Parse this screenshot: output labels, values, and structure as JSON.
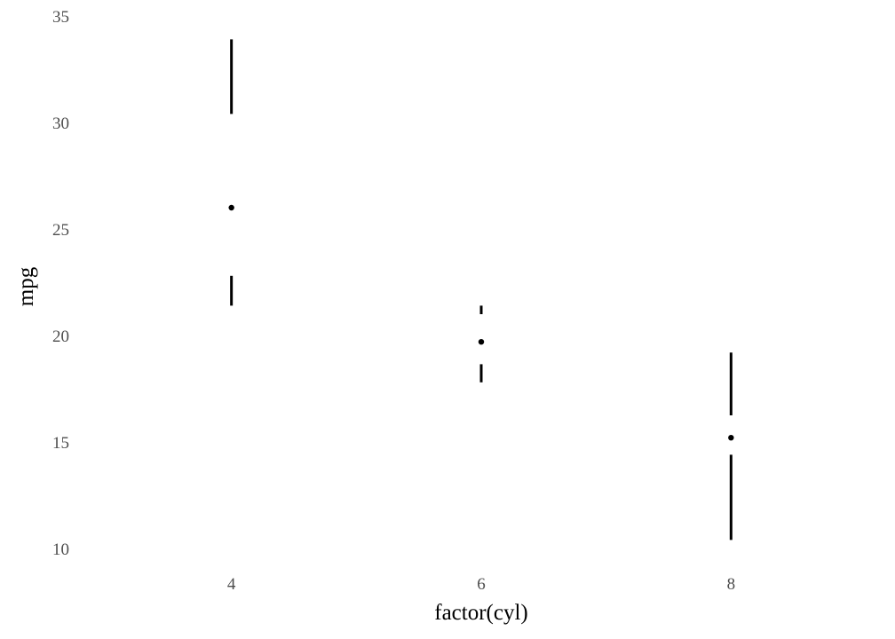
{
  "chart_data": {
    "type": "tufte-boxplot",
    "xlabel": "factor(cyl)",
    "ylabel": "mpg",
    "categories": [
      "4",
      "6",
      "8"
    ],
    "ylim": [
      10,
      35
    ],
    "yticks": [
      "10",
      "15",
      "20",
      "25",
      "30",
      "35"
    ],
    "grid": false,
    "colors": {
      "mark": "#000000",
      "tick_text": "#4d4d4d",
      "title_text": "#000000"
    },
    "boxes": [
      {
        "category": "4",
        "min": 21.4,
        "q1": 22.8,
        "median": 26.0,
        "q3": 30.4,
        "max": 33.9
      },
      {
        "category": "6",
        "min": 17.8,
        "q1": 18.65,
        "median": 19.7,
        "q3": 21.0,
        "max": 21.4
      },
      {
        "category": "8",
        "min": 10.4,
        "q1": 14.4,
        "median": 15.2,
        "q3": 16.25,
        "max": 19.2
      }
    ]
  }
}
